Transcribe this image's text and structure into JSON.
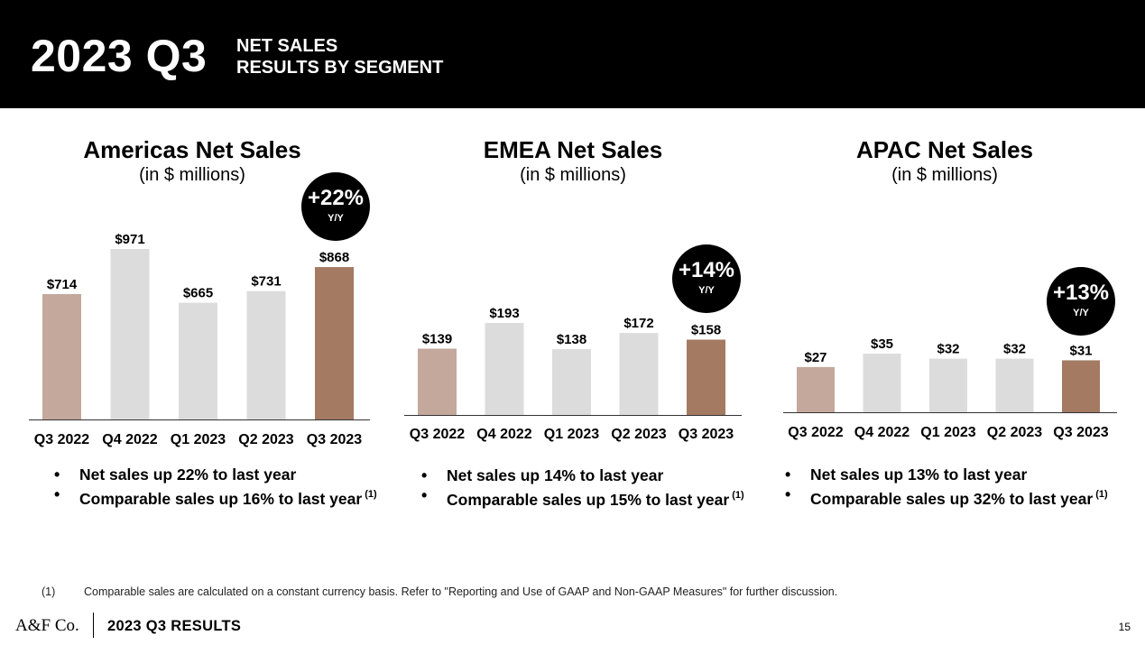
{
  "header": {
    "period": "2023 Q3",
    "subtitle_line1": "NET SALES",
    "subtitle_line2": "RESULTS BY SEGMENT"
  },
  "colors": {
    "prior_year_bar": "#c4a89c",
    "other_bar": "#dcdcdc",
    "current_bar": "#a47a62",
    "header_bg": "#000000"
  },
  "chart_data": [
    {
      "type": "bar",
      "title": "Americas Net Sales",
      "unit": "(in $ millions)",
      "categories": [
        "Q3 2022",
        "Q4 2022",
        "Q1 2023",
        "Q2 2023",
        "Q3 2023"
      ],
      "values": [
        714,
        971,
        665,
        731,
        868
      ],
      "labels": [
        "$714",
        "$971",
        "$665",
        "$731",
        "$868"
      ],
      "growth": "+22%",
      "growth_label": "Y/Y",
      "bullets": [
        "Net sales up 22% to last year",
        "Comparable sales up 16% to last year"
      ],
      "footnote_ref": "(1)"
    },
    {
      "type": "bar",
      "title": "EMEA Net Sales",
      "unit": "(in $ millions)",
      "categories": [
        "Q3 2022",
        "Q4 2022",
        "Q1 2023",
        "Q2 2023",
        "Q3 2023"
      ],
      "values": [
        139,
        193,
        138,
        172,
        158
      ],
      "labels": [
        "$139",
        "$193",
        "$138",
        "$172",
        "$158"
      ],
      "growth": "+14%",
      "growth_label": "Y/Y",
      "bullets": [
        "Net sales up 14% to last year",
        "Comparable sales up 15% to last year"
      ],
      "footnote_ref": "(1)"
    },
    {
      "type": "bar",
      "title": "APAC Net Sales",
      "unit": "(in $ millions)",
      "categories": [
        "Q3 2022",
        "Q4 2022",
        "Q1 2023",
        "Q2 2023",
        "Q3 2023"
      ],
      "values": [
        27,
        35,
        32,
        32,
        31
      ],
      "labels": [
        "$27",
        "$35",
        "$32",
        "$32",
        "$31"
      ],
      "growth": "+13%",
      "growth_label": "Y/Y",
      "bullets": [
        "Net sales up 13% to last year",
        "Comparable sales up 32% to last year"
      ],
      "footnote_ref": "(1)"
    }
  ],
  "footnote": {
    "mark": "(1)",
    "text": "Comparable sales are calculated on a constant currency basis. Refer to \"Reporting and Use of GAAP and Non-GAAP Measures\" for further discussion."
  },
  "footer": {
    "logo": "A&F Co.",
    "title": "2023 Q3 RESULTS",
    "page_number": "15"
  }
}
